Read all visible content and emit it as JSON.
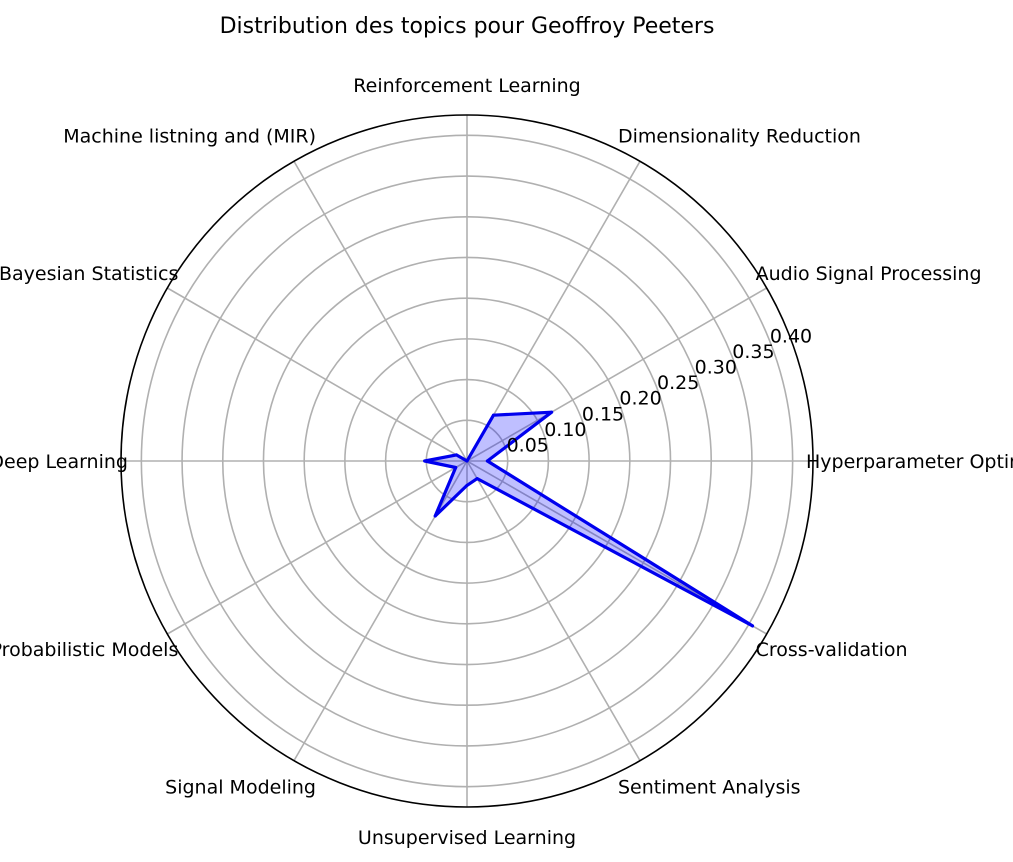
{
  "chart_data": {
    "type": "radar",
    "title": "Distribution des topics pour Geoffroy Peeters",
    "categories": [
      "Hyperparameter Optimization",
      "Audio Signal Processing",
      "Dimensionality Reduction",
      "Reinforcement Learning",
      "Machine listning and (MIR)",
      "Bayesian Statistics",
      "Deep Learning",
      "Probabilistic Models",
      "Signal Modeling",
      "Unsupervised Learning",
      "Sentiment Analysis",
      "Cross-validation"
    ],
    "series": [
      {
        "values": [
          0.025,
          0.12,
          0.065,
          0.0,
          0.0,
          0.015,
          0.052,
          0.016,
          0.078,
          0.03,
          0.025,
          0.405
        ]
      }
    ],
    "rlim": [
      0,
      0.425
    ],
    "r_ticks": [
      0.05,
      0.1,
      0.15,
      0.2,
      0.25,
      0.3,
      0.35,
      0.4
    ],
    "r_tick_labels": [
      "0.05",
      "0.10",
      "0.15",
      "0.20",
      "0.25",
      "0.30",
      "0.35",
      "0.40"
    ],
    "grid": true,
    "colors": {
      "line": "#0000ee",
      "fill": "#0000ff",
      "grid": "#b0b0b0",
      "frame": "#000000"
    }
  }
}
